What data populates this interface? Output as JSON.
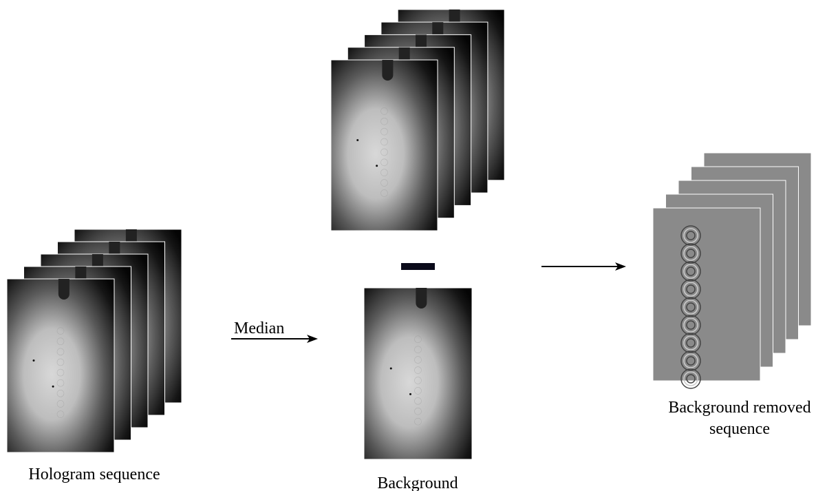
{
  "labels": {
    "hologram_sequence": "Hologram sequence",
    "median": "Median",
    "background": "Background",
    "background_removed": [
      "Background removed",
      "sequence"
    ]
  }
}
